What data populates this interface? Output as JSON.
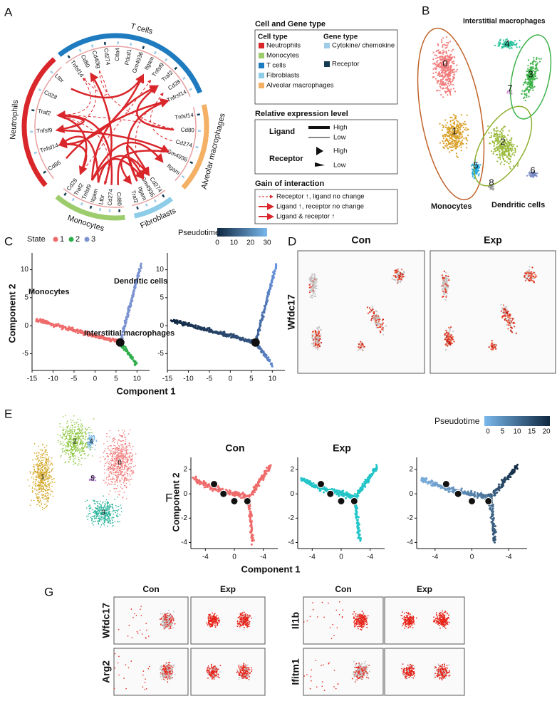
{
  "panel_a": {
    "letter": "A",
    "groups": [
      {
        "name": "T cells",
        "color": "#1f7bbf",
        "genes": [
          "Tnfsf14",
          "Cd80",
          "Cd40lg",
          "Cd274",
          "Ctla4",
          "Pdcd1",
          "Gm4936",
          "Itgam",
          "Tnfsf9",
          "Traf2",
          "Cd28",
          "Tnfrsf14"
        ]
      },
      {
        "name": "Alveolar macrophages",
        "color": "#f4b065",
        "genes": [
          "Tnfsf14",
          "Cd80",
          "Cd274",
          "Gm4936",
          "Itgam"
        ]
      },
      {
        "name": "Fibroblasts",
        "color": "#8ecde8",
        "genes": [
          "Cd274",
          "Gm4936",
          "Itgam",
          "Traf2"
        ]
      },
      {
        "name": "Monocytes",
        "color": "#9ccc6c",
        "genes": [
          "Cd80",
          "Cd274",
          "Ltbr",
          "Itgam",
          "Tnfsf9",
          "Traf2",
          "Cd28"
        ]
      },
      {
        "name": "Neutrophils",
        "color": "#d9262b",
        "genes": [
          "Cd86",
          "Tnfsf14",
          "Tnfsf9",
          "Traf2",
          "Cd28",
          "Ltbr"
        ]
      }
    ],
    "legend": {
      "title": "Cell and Gene type",
      "cell_type_heading": "Cell type",
      "gene_type_heading": "Gene type",
      "cell_types": [
        {
          "name": "Neutrophils",
          "color": "#d9262b"
        },
        {
          "name": "Monocytes",
          "color": "#9ccc6c"
        },
        {
          "name": "T cells",
          "color": "#1f7bbf"
        },
        {
          "name": "Fibroblasts",
          "color": "#8ecde8"
        },
        {
          "name": "Alveolar macrophages",
          "color": "#f4b065"
        }
      ],
      "gene_types": [
        {
          "name": "Cytokine/ chemokine",
          "color": "#9ecbe6"
        },
        {
          "name": "Receptor",
          "color": "#123a52"
        }
      ],
      "expression_title": "Relative expression level",
      "ligand": "Ligand",
      "receptor": "Receptor",
      "high": "High",
      "low": "Low",
      "gain_title": "Gain of interaction",
      "gain_items": [
        "Receptor ↑, ligand no change",
        "Ligand ↑, receptor no change",
        "Ligand & receptor ↑"
      ]
    }
  },
  "panel_b": {
    "letter": "B",
    "clusters": [
      0,
      1,
      2,
      3,
      4,
      5,
      6,
      7,
      8
    ],
    "monocytes": "Monocytes",
    "interstitial": "Interstitial macrophages",
    "dendritic": "Dendritic cells"
  },
  "panel_c": {
    "letter": "C",
    "state_label": "State",
    "states": [
      1,
      2,
      3
    ],
    "pseudotime": "Pseudotime",
    "pseudo_ticks": [
      0,
      10,
      20,
      30
    ],
    "x_label": "Component 1",
    "y_label": "Component 2",
    "xticks": [
      -15,
      -10,
      -5,
      0,
      5,
      10
    ],
    "yticks": [
      -5,
      0,
      5,
      10
    ],
    "monocytes": "Monocytes",
    "dendritic": "Dendritic cells",
    "interstitial": "Interstitial macrophages",
    "node": 1
  },
  "panel_d": {
    "letter": "D",
    "con": "Con",
    "exp": "Exp",
    "gene": "Wfdc17"
  },
  "panel_e": {
    "letter": "E",
    "clusters": [
      0,
      1,
      2,
      3,
      4,
      5
    ]
  },
  "panel_f": {
    "letter": "F",
    "con": "Con",
    "exp": "Exp",
    "pseudotime": "Pseudotime",
    "pseudo_ticks": [
      0,
      5,
      10,
      15,
      20
    ],
    "x_label": "Component 1",
    "y_label": "Component 2",
    "xticks": [
      -4,
      0,
      -4
    ],
    "yticks": [
      2,
      0,
      -2,
      -4
    ],
    "nodes": [
      4,
      2,
      1,
      3
    ]
  },
  "panel_g": {
    "letter": "G",
    "con": "Con",
    "exp": "Exp",
    "genes_left": [
      "Wfdc17",
      "Arg2"
    ],
    "genes_right": [
      "Il1b",
      "Ifitm1"
    ]
  }
}
